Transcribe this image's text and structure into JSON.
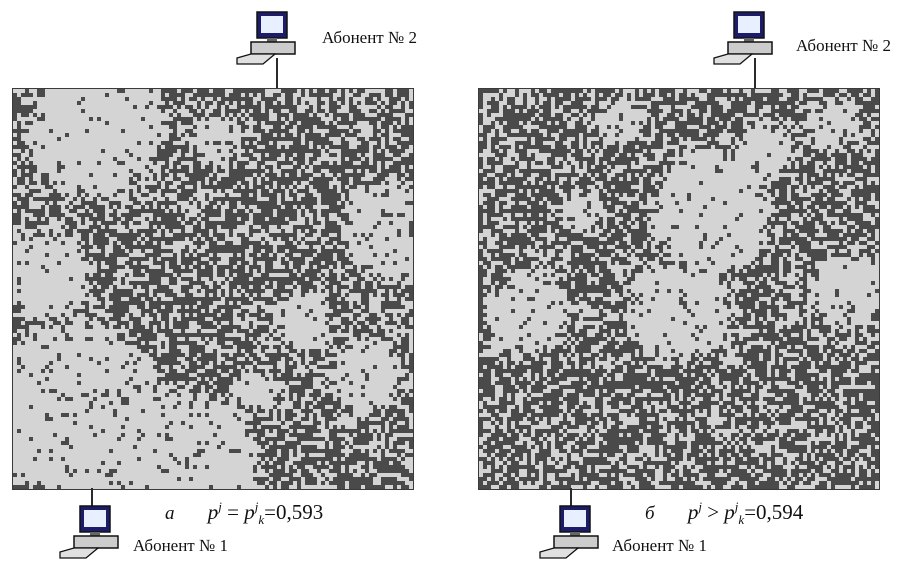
{
  "panels": [
    {
      "label_top": "Абонент № 2",
      "label_bottom": "Абонент № 1",
      "caption_letter": "а",
      "caption_formula": {
        "left_base": "p",
        "left_sup": "j",
        "relation": "=",
        "right_base": "p",
        "right_sup": "j",
        "right_sub": "k",
        "equals": "=",
        "value": "0,593"
      }
    },
    {
      "label_top": "Абонент № 2",
      "label_bottom": "Абонент № 1",
      "caption_letter": "б",
      "caption_formula": {
        "left_base": "p",
        "left_sup": "j",
        "relation": ">",
        "right_base": "p",
        "right_sup": "j",
        "right_sub": "k",
        "equals": "=",
        "value": "0,594"
      }
    }
  ],
  "colors": {
    "background": "#ffffff",
    "empty_area": "#d4d4d4",
    "cluster": "#4a4a4a",
    "frame": "#3a3a3a"
  },
  "icons": [
    "computer-icon"
  ]
}
